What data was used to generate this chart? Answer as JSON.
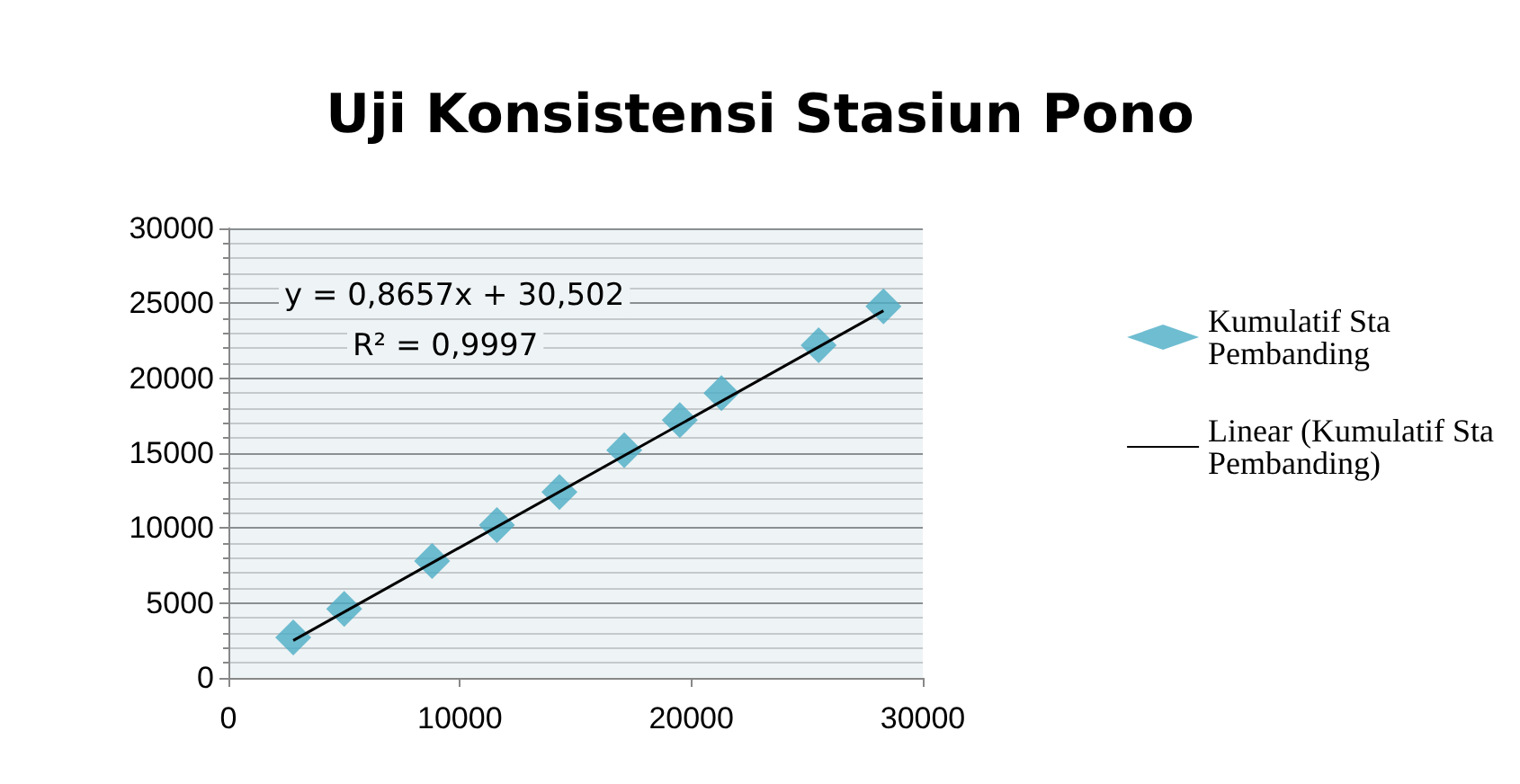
{
  "chart_data": {
    "type": "scatter",
    "title": "Uji Konsistensi Stasiun Pono",
    "series": [
      {
        "name": "Kumulatif Sta Pembanding",
        "color": "#4bacc6",
        "marker": "diamond",
        "x": [
          2800,
          5000,
          8800,
          11600,
          14300,
          17100,
          19500,
          21300,
          25500,
          28300
        ],
        "values": [
          2700,
          4600,
          7800,
          10200,
          12400,
          15200,
          17200,
          19000,
          22200,
          24800
        ]
      },
      {
        "name": "Linear (Kumulatif Sta Pembanding)",
        "type": "line",
        "color": "#000000",
        "marker": "none",
        "x": [
          2800,
          28300
        ],
        "values": [
          2500,
          24500
        ]
      }
    ],
    "xlim": [
      0,
      30000
    ],
    "xticks": [
      0,
      10000,
      20000,
      30000
    ],
    "ylim": [
      0,
      30000
    ],
    "yticks": [
      0,
      5000,
      10000,
      15000,
      20000,
      25000,
      30000
    ],
    "grid": "y",
    "legend": "right",
    "annotations": [
      "y = 0,8657x + 30,502",
      "R² = 0,9997"
    ]
  }
}
